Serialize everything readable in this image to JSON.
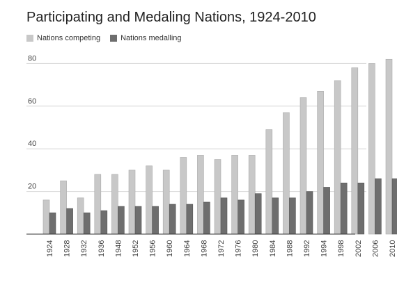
{
  "chart_data": {
    "type": "bar",
    "title": "Participating and Medaling Nations, 1924-2010",
    "xlabel": "",
    "ylabel": "",
    "categories": [
      "1924",
      "1928",
      "1932",
      "1936",
      "1948",
      "1952",
      "1956",
      "1960",
      "1964",
      "1968",
      "1972",
      "1976",
      "1980",
      "1984",
      "1988",
      "1992",
      "1994",
      "1998",
      "2002",
      "2006",
      "2010"
    ],
    "series": [
      {
        "name": "Nations competing",
        "color": "#c8c8c8",
        "values": [
          16,
          25,
          17,
          28,
          28,
          30,
          32,
          30,
          36,
          37,
          35,
          37,
          37,
          49,
          57,
          64,
          67,
          72,
          78,
          80,
          82
        ]
      },
      {
        "name": "Nations medalling",
        "color": "#6e6e6e",
        "values": [
          10,
          12,
          10,
          11,
          13,
          13,
          13,
          14,
          14,
          15,
          17,
          16,
          19,
          17,
          17,
          20,
          22,
          24,
          24,
          26,
          26
        ]
      }
    ],
    "ylim": [
      0,
      85
    ],
    "yticks": [
      20,
      40,
      60,
      80
    ],
    "grid": true,
    "legend": "top-left"
  }
}
